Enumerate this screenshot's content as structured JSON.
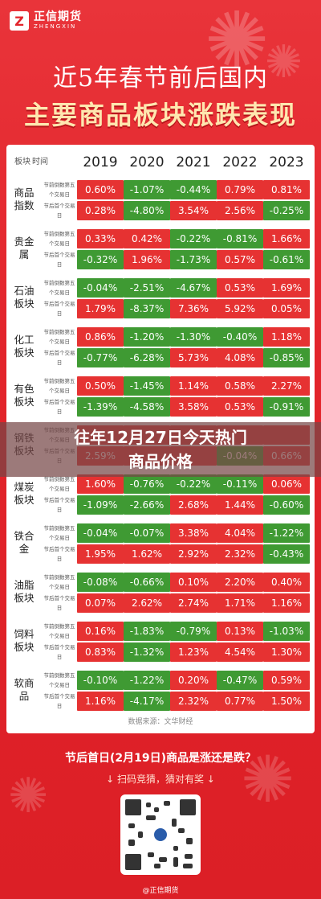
{
  "brand": {
    "name_cn": "正信期货",
    "name_en": "ZHENGXIN"
  },
  "title_line1": "近5年春节前后国内",
  "title_line2": "主要商品板块涨跌表现",
  "table": {
    "col_sector": "板块",
    "col_time": "时间",
    "years": [
      "2019",
      "2020",
      "2021",
      "2022",
      "2023"
    ],
    "row_labels": [
      "节前倒数第五个交易日",
      "节后首个交易日"
    ],
    "groups": [
      {
        "sector": "商品指数",
        "before": [
          "0.60%",
          "-1.07%",
          "-0.44%",
          "0.79%",
          "0.81%"
        ],
        "after": [
          "0.28%",
          "-4.80%",
          "3.54%",
          "2.56%",
          "-0.25%"
        ]
      },
      {
        "sector": "贵金属",
        "before": [
          "0.33%",
          "0.42%",
          "-0.22%",
          "-0.81%",
          "1.66%"
        ],
        "after": [
          "-0.32%",
          "1.96%",
          "-1.73%",
          "0.57%",
          "-0.61%"
        ]
      },
      {
        "sector": "石油板块",
        "before": [
          "-0.04%",
          "-2.51%",
          "-4.67%",
          "0.53%",
          "1.69%"
        ],
        "after": [
          "1.79%",
          "-8.37%",
          "7.36%",
          "5.92%",
          "0.05%"
        ]
      },
      {
        "sector": "化工板块",
        "before": [
          "0.86%",
          "-1.20%",
          "-1.30%",
          "-0.40%",
          "1.18%"
        ],
        "after": [
          "-0.77%",
          "-6.28%",
          "5.73%",
          "4.08%",
          "-0.85%"
        ]
      },
      {
        "sector": "有色板块",
        "before": [
          "0.50%",
          "-1.45%",
          "1.14%",
          "0.58%",
          "2.27%"
        ],
        "after": [
          "-1.39%",
          "-4.58%",
          "3.58%",
          "0.53%",
          "-0.91%"
        ]
      },
      {
        "sector": "钢铁板块",
        "before": [
          "",
          "",
          "",
          "",
          ""
        ],
        "after": [
          "2.59%",
          "",
          "",
          "-0.04%",
          "0.66%"
        ]
      },
      {
        "sector": "煤炭板块",
        "before": [
          "1.60%",
          "-0.76%",
          "-0.22%",
          "-0.11%",
          "0.06%"
        ],
        "after": [
          "-1.09%",
          "-2.66%",
          "2.68%",
          "1.44%",
          "-0.60%"
        ]
      },
      {
        "sector": "铁合金",
        "before": [
          "-0.04%",
          "-0.07%",
          "3.38%",
          "4.04%",
          "-1.22%"
        ],
        "after": [
          "1.95%",
          "1.62%",
          "2.92%",
          "2.32%",
          "-0.43%"
        ]
      },
      {
        "sector": "油脂板块",
        "before": [
          "-0.08%",
          "-0.66%",
          "0.10%",
          "2.20%",
          "0.40%"
        ],
        "after": [
          "0.07%",
          "2.62%",
          "2.74%",
          "1.71%",
          "1.16%"
        ]
      },
      {
        "sector": "饲料板块",
        "before": [
          "0.16%",
          "-1.83%",
          "-0.79%",
          "0.13%",
          "-1.03%"
        ],
        "after": [
          "0.83%",
          "-1.32%",
          "1.23%",
          "4.54%",
          "1.30%"
        ]
      },
      {
        "sector": "软商品",
        "before": [
          "-0.10%",
          "-1.22%",
          "0.20%",
          "-0.47%",
          "0.59%"
        ],
        "after": [
          "1.16%",
          "-4.17%",
          "2.32%",
          "0.77%",
          "1.50%"
        ]
      }
    ],
    "source": "数据来源：文华财经"
  },
  "banner": {
    "line1": "往年12月27日今天热门",
    "line2": "商品价格"
  },
  "cta_line1": "节后首日(2月19日)商品是涨还是跌？",
  "cta_line2": "↓ 扫码竞猜，猜对有奖 ↓",
  "footer": "@正信期货",
  "colors": {
    "background": "#e2242b",
    "up": "#e63232",
    "down": "#3f9a33",
    "title_accent": "#ffe7b0"
  },
  "icons": {
    "logo": "zhengxin-logo-icon",
    "qr": "qr-code-icon",
    "firework": "firework-icon"
  }
}
